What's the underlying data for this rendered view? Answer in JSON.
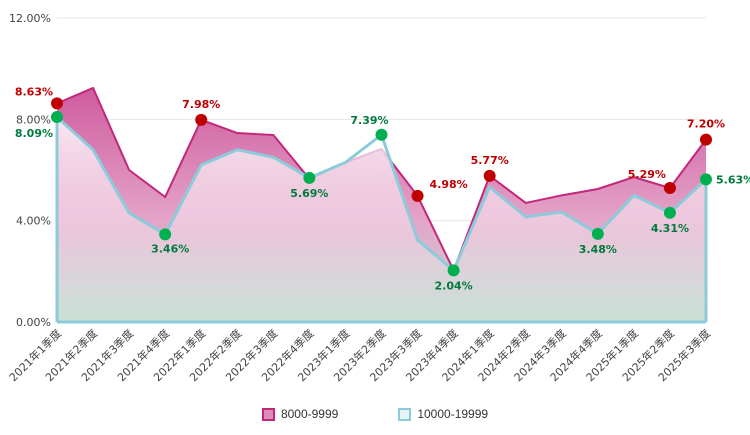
{
  "chart_data": {
    "type": "area",
    "title": "",
    "xlabel": "",
    "ylabel": "",
    "ylim": [
      0,
      12
    ],
    "yticks": [
      "0.00%",
      "4.00%",
      "8.00%",
      "12.00%"
    ],
    "grid": true,
    "legend_position": "bottom",
    "categories": [
      "2021年1季度",
      "2021年2季度",
      "2021年3季度",
      "2021年4季度",
      "2022年1季度",
      "2022年2季度",
      "2022年3季度",
      "2022年4季度",
      "2023年1季度",
      "2023年2季度",
      "2023年3季度",
      "2023年4季度",
      "2024年1季度",
      "2024年2季度",
      "2024年3季度",
      "2024年4季度",
      "2025年1季度",
      "2025年2季度",
      "2025年3季度"
    ],
    "series": [
      {
        "name": "8000-9999",
        "color": "#c2277a",
        "marker_color": "#c00000",
        "label_color": "#c00000",
        "values": [
          8.63,
          9.24,
          6.0,
          4.93,
          7.98,
          7.46,
          7.38,
          5.65,
          6.3,
          6.83,
          4.98,
          2.04,
          5.77,
          4.7,
          5.0,
          5.25,
          5.72,
          5.29,
          7.2
        ],
        "labeled": [
          0,
          4,
          10,
          12,
          17,
          18
        ],
        "labels": [
          "8.63%",
          "7.98%",
          "4.98%",
          "5.77%",
          "5.29%",
          "7.20%"
        ]
      },
      {
        "name": "10000-19999",
        "color": "#8ccbd9",
        "marker_color": "#00b050",
        "label_color": "#007a3d",
        "values": [
          8.09,
          6.8,
          4.3,
          3.46,
          6.2,
          6.8,
          6.5,
          5.69,
          6.3,
          7.39,
          3.24,
          2.04,
          5.33,
          4.15,
          4.34,
          3.48,
          5.0,
          4.31,
          5.63
        ],
        "labeled": [
          0,
          3,
          7,
          9,
          11,
          15,
          17,
          18
        ],
        "labels": [
          "8.09%",
          "3.46%",
          "5.69%",
          "7.39%",
          "2.04%",
          "3.48%",
          "4.31%",
          "5.63%"
        ]
      }
    ]
  }
}
